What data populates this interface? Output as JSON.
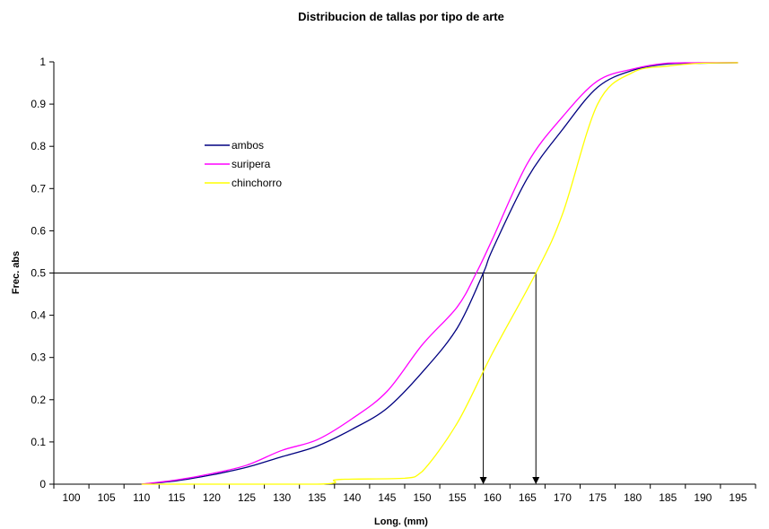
{
  "chart_data": {
    "type": "line",
    "title": "Distribucion de tallas por tipo de arte",
    "xlabel": "Long. (mm)",
    "ylabel": "Frec. abs",
    "categories": [
      "100",
      "105",
      "110",
      "115",
      "120",
      "125",
      "130",
      "135",
      "140",
      "145",
      "150",
      "155",
      "160",
      "165",
      "170",
      "175",
      "180",
      "185",
      "190",
      "195"
    ],
    "xlim": [
      100,
      195
    ],
    "ylim": [
      0,
      1
    ],
    "yticks": [
      "0",
      "0.1",
      "0.2",
      "0.3",
      "0.4",
      "0.5",
      "0.6",
      "0.7",
      "0.8",
      "0.9",
      "1"
    ],
    "legend_position": "upper-left",
    "series": [
      {
        "name": "ambos",
        "color": "#000080",
        "points": [
          [
            110,
            0
          ],
          [
            115,
            0.008
          ],
          [
            120,
            0.022
          ],
          [
            125,
            0.04
          ],
          [
            130,
            0.065
          ],
          [
            135,
            0.09
          ],
          [
            140,
            0.13
          ],
          [
            145,
            0.18
          ],
          [
            150,
            0.265
          ],
          [
            155,
            0.37
          ],
          [
            158.7,
            0.5
          ],
          [
            160,
            0.555
          ],
          [
            165,
            0.725
          ],
          [
            170,
            0.84
          ],
          [
            175,
            0.94
          ],
          [
            180,
            0.98
          ],
          [
            185,
            0.995
          ],
          [
            190,
            0.997
          ],
          [
            195,
            0.998
          ]
        ]
      },
      {
        "name": "suripera",
        "color": "#ff00ff",
        "points": [
          [
            110,
            0
          ],
          [
            115,
            0.01
          ],
          [
            120,
            0.025
          ],
          [
            125,
            0.045
          ],
          [
            130,
            0.08
          ],
          [
            135,
            0.105
          ],
          [
            140,
            0.155
          ],
          [
            145,
            0.22
          ],
          [
            150,
            0.33
          ],
          [
            155,
            0.42
          ],
          [
            157.7,
            0.5
          ],
          [
            160,
            0.58
          ],
          [
            165,
            0.76
          ],
          [
            170,
            0.87
          ],
          [
            175,
            0.955
          ],
          [
            180,
            0.983
          ],
          [
            185,
            0.997
          ],
          [
            190,
            0.998
          ],
          [
            195,
            0.998
          ]
        ]
      },
      {
        "name": "chinchorro",
        "color": "#ffff00",
        "points": [
          [
            110,
            0
          ],
          [
            135,
            0
          ],
          [
            137.5,
            0.01
          ],
          [
            140,
            0.012
          ],
          [
            147.5,
            0.014
          ],
          [
            150,
            0.03
          ],
          [
            155,
            0.145
          ],
          [
            160,
            0.31
          ],
          [
            166.2,
            0.5
          ],
          [
            170,
            0.64
          ],
          [
            175,
            0.9
          ],
          [
            180,
            0.975
          ],
          [
            185,
            0.99
          ],
          [
            190,
            0.997
          ],
          [
            195,
            0.998
          ]
        ]
      }
    ],
    "reference_lines": {
      "y": 0.5,
      "x_from": 100,
      "drop_x": [
        158.7,
        166.2
      ]
    }
  }
}
